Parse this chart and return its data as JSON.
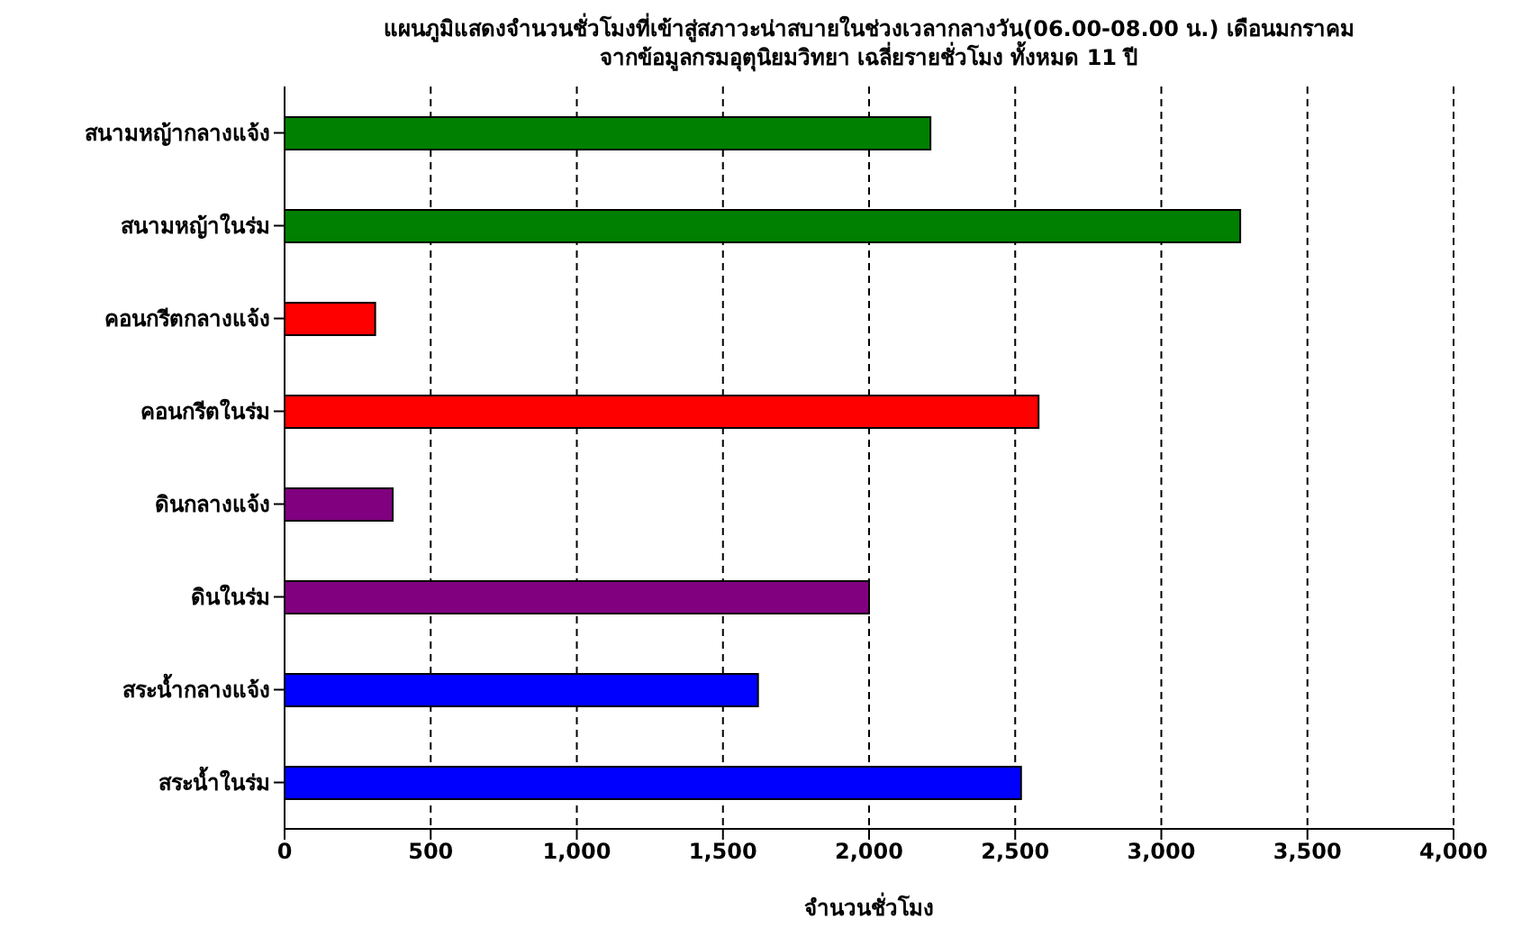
{
  "chart_data": {
    "type": "bar",
    "orientation": "horizontal",
    "title": "แผนภูมิแสดงจำนวนชั่วโมงที่เข้าสู่สภาวะน่าสบายในช่วงเวลากลางวัน(06.00-08.00 น.) เดือนมกราคม",
    "subtitle": "จากข้อมูลกรมอุตุนิยมวิทยา เฉลี่ยรายชั่วโมง ทั้งหมด 11 ปี",
    "xlabel": "จำนวนชั่วโมง",
    "categories": [
      "สนามหญ้ากลางแจ้ง",
      "สนามหญ้าในร่ม",
      "คอนกรีตกลางแจ้ง",
      "คอนกรีตในร่ม",
      "ดินกลางแจ้ง",
      "ดินในร่ม",
      "สระน้ำกลางแจ้ง",
      "สระน้ำในร่ม"
    ],
    "values": [
      2210,
      3270,
      310,
      2580,
      370,
      2000,
      1620,
      2520
    ],
    "colors": [
      "#008000",
      "#008000",
      "#ff0000",
      "#ff0000",
      "#800080",
      "#800080",
      "#0000ff",
      "#0000ff"
    ],
    "xlim": [
      0,
      4000
    ],
    "xticks": [
      0,
      500,
      {
        "value": 1000,
        "label": "1,000"
      },
      {
        "value": 1500,
        "label": "1,500"
      },
      {
        "value": 2000,
        "label": "2,000"
      },
      {
        "value": 2500,
        "label": "2,500"
      },
      {
        "value": 3000,
        "label": "3,000"
      },
      {
        "value": 3500,
        "label": "3,500"
      },
      {
        "value": 4000,
        "label": "4,000"
      }
    ],
    "grid": "x",
    "legend": false
  }
}
